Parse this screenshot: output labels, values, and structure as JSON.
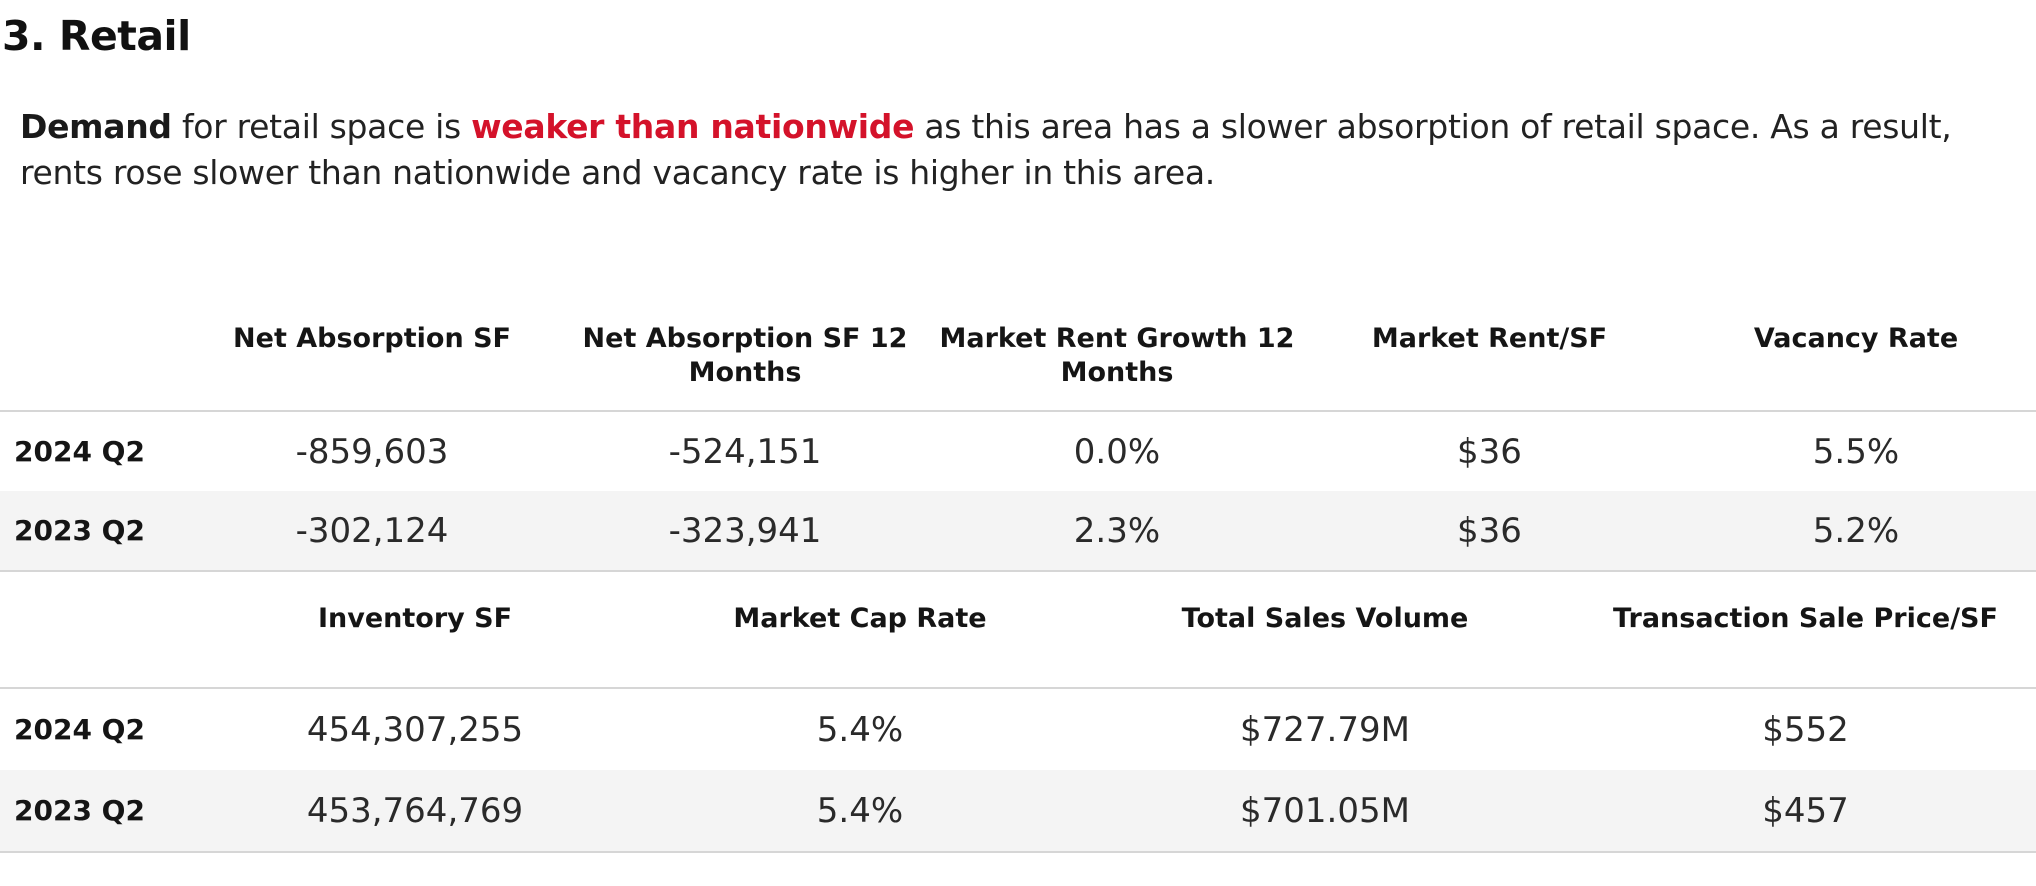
{
  "section": {
    "title": "3. Retail"
  },
  "summary": {
    "lead": "Demand",
    "part1": " for retail space is ",
    "highlight": "weaker than nationwide",
    "part2": " as this area has a slower absorption of retail space. As a result, rents rose slower than nationwide and vacancy rate is higher in this area.",
    "highlight_color": "#d4122a"
  },
  "table_1": {
    "headers": [
      "",
      "Net Absorption SF",
      "Net Absorption SF 12 Months",
      "Market Rent Growth 12 Months",
      "Market Rent/SF",
      "Vacancy Rate"
    ],
    "rows": [
      [
        "2024 Q2",
        "-859,603",
        "-524,151",
        "0.0%",
        "$36",
        "5.5%"
      ],
      [
        "2023 Q2",
        "-302,124",
        "-323,941",
        "2.3%",
        "$36",
        "5.2%"
      ]
    ]
  },
  "table_2": {
    "headers": [
      "",
      "Inventory SF",
      "Market Cap Rate",
      "Total Sales Volume",
      "Transaction Sale Price/SF"
    ],
    "rows": [
      [
        "2024 Q2",
        "454,307,255",
        "5.4%",
        "$727.79M",
        "$552"
      ],
      [
        "2023 Q2",
        "453,764,769",
        "5.4%",
        "$701.05M",
        "$457"
      ]
    ]
  }
}
